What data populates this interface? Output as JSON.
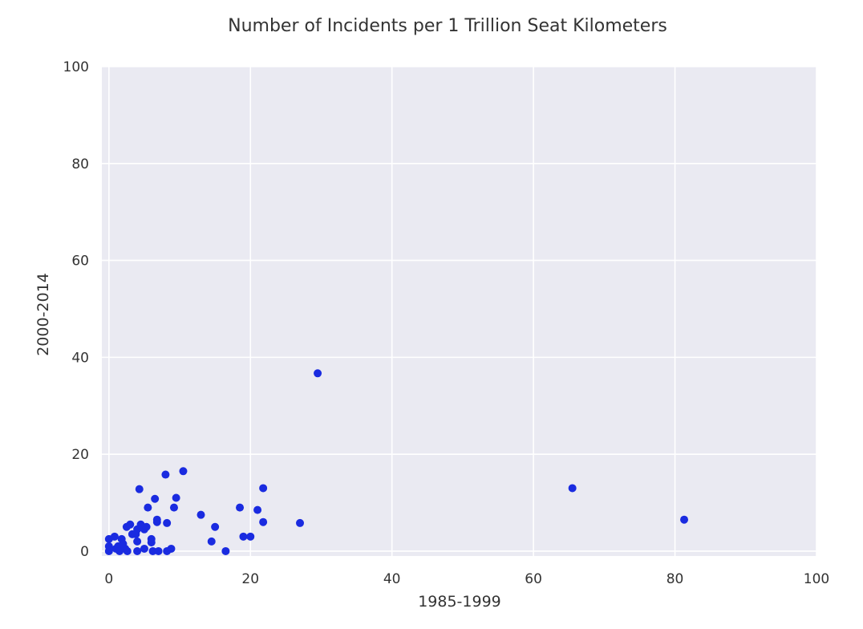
{
  "colors": {
    "plot_background": "#eaeaf2",
    "grid": "#ffffff",
    "point": "#1a2be0",
    "text": "#333333"
  },
  "chart_data": {
    "type": "scatter",
    "title": "Number of Incidents per 1 Trillion Seat Kilometers",
    "xlabel": "1985-1999",
    "ylabel": "2000-2014",
    "xlim": [
      -1,
      100
    ],
    "ylim": [
      -1,
      100
    ],
    "xticks": [
      "0",
      "20",
      "40",
      "60",
      "80",
      "100"
    ],
    "yticks": [
      "0",
      "20",
      "40",
      "60",
      "80",
      "100"
    ],
    "grid": true,
    "series": [
      {
        "points": [
          [
            0,
            0
          ],
          [
            0,
            1
          ],
          [
            0,
            2.5
          ],
          [
            0.8,
            3
          ],
          [
            1,
            0.5
          ],
          [
            1.3,
            1
          ],
          [
            1.5,
            0
          ],
          [
            1.8,
            2.5
          ],
          [
            2,
            1.5
          ],
          [
            2.3,
            0.5
          ],
          [
            2.5,
            5
          ],
          [
            2.6,
            0
          ],
          [
            3,
            5.5
          ],
          [
            3.3,
            3.5
          ],
          [
            3.8,
            3.5
          ],
          [
            4,
            4.5
          ],
          [
            4,
            2
          ],
          [
            4,
            0
          ],
          [
            4.3,
            12.8
          ],
          [
            4.5,
            5.5
          ],
          [
            5,
            4.5
          ],
          [
            5,
            0.5
          ],
          [
            5.3,
            5
          ],
          [
            5.5,
            9
          ],
          [
            6,
            2.5
          ],
          [
            6,
            1.8
          ],
          [
            6.2,
            0
          ],
          [
            6.5,
            10.8
          ],
          [
            6.8,
            6
          ],
          [
            6.8,
            6.5
          ],
          [
            7,
            0
          ],
          [
            8,
            15.8
          ],
          [
            8.2,
            0
          ],
          [
            8.2,
            5.8
          ],
          [
            8.8,
            0.5
          ],
          [
            9.2,
            9
          ],
          [
            9.5,
            11
          ],
          [
            10.5,
            16.5
          ],
          [
            13,
            7.5
          ],
          [
            14.5,
            2
          ],
          [
            15,
            5
          ],
          [
            16.5,
            0
          ],
          [
            18.5,
            9
          ],
          [
            19,
            3
          ],
          [
            20,
            3
          ],
          [
            21,
            8.5
          ],
          [
            21.8,
            6
          ],
          [
            21.8,
            13
          ],
          [
            27,
            5.8
          ],
          [
            29.5,
            36.7
          ],
          [
            65.5,
            13
          ],
          [
            81.3,
            6.5
          ]
        ]
      }
    ]
  }
}
